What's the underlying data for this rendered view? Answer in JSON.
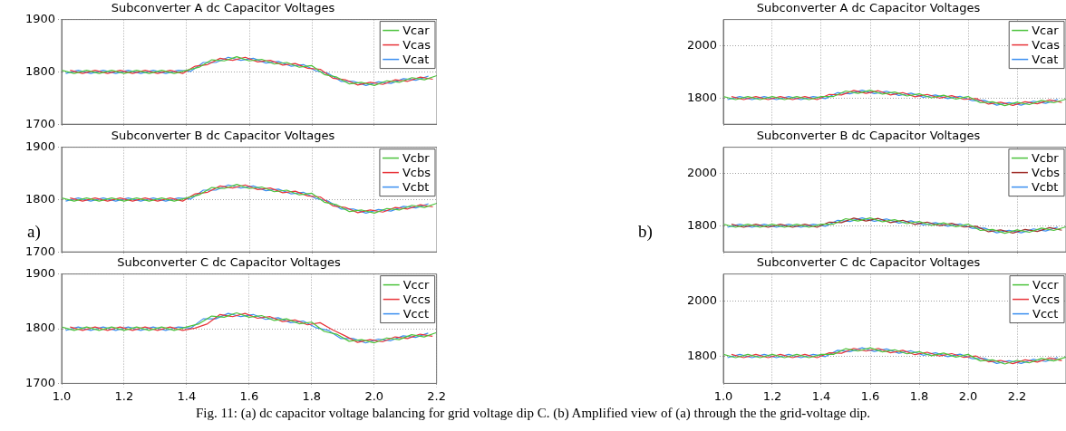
{
  "chart_data": [
    {
      "type": "line",
      "title": "Subconverter A dc Capacitor Voltages",
      "xlim": [
        1.0,
        2.2
      ],
      "xticks": [
        {
          "value": 1.0,
          "label": null
        },
        {
          "value": 1.2,
          "label": null
        },
        {
          "value": 1.4,
          "label": null
        },
        {
          "value": 1.6,
          "label": null
        },
        {
          "value": 1.8,
          "label": null
        },
        {
          "value": 2.0,
          "label": null
        },
        {
          "value": 2.2,
          "label": null
        }
      ],
      "ylim": [
        1700,
        1900
      ],
      "yticks": [
        1700,
        1800,
        1900
      ],
      "grid": true,
      "legend": "top right",
      "tick_labels": "y",
      "line_style": "solid",
      "marker": "none",
      "series": [
        {
          "name": "Vcar",
          "color": "#4cc33c",
          "x": [
            1.0,
            1.04,
            1.08,
            1.12,
            1.16,
            1.2,
            1.24,
            1.28,
            1.32,
            1.36,
            1.4,
            1.44,
            1.48,
            1.52,
            1.56,
            1.6,
            1.64,
            1.68,
            1.72,
            1.76,
            1.8,
            1.84,
            1.88,
            1.92,
            1.96,
            2.0,
            2.04,
            2.08,
            2.12,
            2.16,
            2.2
          ],
          "values": [
            1803,
            1797,
            1803,
            1797,
            1803,
            1797,
            1803,
            1797,
            1803,
            1797,
            1803,
            1809,
            1823,
            1821,
            1829,
            1821,
            1824,
            1815,
            1818,
            1809,
            1812,
            1795,
            1790,
            1777,
            1780,
            1774,
            1783,
            1780,
            1789,
            1785,
            1793
          ]
        },
        {
          "name": "Vcas",
          "color": "#e8353b",
          "x": [
            1.027,
            1.067,
            1.107,
            1.147,
            1.187,
            1.227,
            1.267,
            1.307,
            1.347,
            1.387,
            1.427,
            1.467,
            1.507,
            1.547,
            1.587,
            1.627,
            1.667,
            1.707,
            1.747,
            1.787,
            1.827,
            1.867,
            1.907,
            1.947,
            1.987,
            2.027,
            2.067,
            2.107,
            2.147,
            2.187
          ],
          "values": [
            1803,
            1797,
            1803,
            1797,
            1803,
            1797,
            1803,
            1797,
            1803,
            1797,
            1811,
            1814,
            1826,
            1822,
            1828,
            1819,
            1822,
            1813,
            1816,
            1807,
            1805,
            1788,
            1785,
            1775,
            1780,
            1776,
            1785,
            1782,
            1790,
            1786
          ]
        },
        {
          "name": "Vcat",
          "color": "#3b8ff0",
          "x": [
            1.013,
            1.053,
            1.093,
            1.133,
            1.173,
            1.213,
            1.253,
            1.293,
            1.333,
            1.373,
            1.413,
            1.453,
            1.493,
            1.533,
            1.573,
            1.613,
            1.653,
            1.693,
            1.733,
            1.773,
            1.813,
            1.853,
            1.893,
            1.933,
            1.973,
            2.013,
            2.053,
            2.093,
            2.133,
            2.173
          ],
          "values": [
            1797,
            1803,
            1797,
            1803,
            1797,
            1803,
            1797,
            1803,
            1797,
            1803,
            1801,
            1818,
            1818,
            1828,
            1822,
            1826,
            1817,
            1820,
            1811,
            1814,
            1802,
            1797,
            1782,
            1782,
            1774,
            1781,
            1778,
            1787,
            1784,
            1792
          ]
        }
      ]
    },
    {
      "type": "line",
      "title": "Subconverter B dc Capacitor Voltages",
      "annotations": [
        "a)"
      ],
      "xlim": [
        1.0,
        2.2
      ],
      "xticks": [
        {
          "value": 1.0,
          "label": null
        },
        {
          "value": 1.2,
          "label": null
        },
        {
          "value": 1.4,
          "label": null
        },
        {
          "value": 1.6,
          "label": null
        },
        {
          "value": 1.8,
          "label": null
        },
        {
          "value": 2.0,
          "label": null
        },
        {
          "value": 2.2,
          "label": null
        }
      ],
      "ylim": [
        1700,
        1900
      ],
      "yticks": [
        1700,
        1800,
        1900
      ],
      "grid": true,
      "legend": "top right",
      "tick_labels": "y",
      "line_style": "solid",
      "marker": "none",
      "series": [
        {
          "name": "Vcbr",
          "color": "#4cc33c",
          "x": [
            1.0,
            1.04,
            1.08,
            1.12,
            1.16,
            1.2,
            1.24,
            1.28,
            1.32,
            1.36,
            1.4,
            1.44,
            1.48,
            1.52,
            1.56,
            1.6,
            1.64,
            1.68,
            1.72,
            1.76,
            1.8,
            1.84,
            1.88,
            1.92,
            1.96,
            2.0,
            2.04,
            2.08,
            2.12,
            2.16,
            2.2
          ],
          "values": [
            1803,
            1797,
            1803,
            1797,
            1803,
            1797,
            1803,
            1797,
            1803,
            1797,
            1803,
            1809,
            1823,
            1821,
            1829,
            1821,
            1824,
            1815,
            1818,
            1809,
            1812,
            1795,
            1790,
            1777,
            1780,
            1774,
            1783,
            1780,
            1789,
            1785,
            1793
          ]
        },
        {
          "name": "Vcbs",
          "color": "#e8353b",
          "x": [
            1.027,
            1.067,
            1.107,
            1.147,
            1.187,
            1.227,
            1.267,
            1.307,
            1.347,
            1.387,
            1.427,
            1.467,
            1.507,
            1.547,
            1.587,
            1.627,
            1.667,
            1.707,
            1.747,
            1.787,
            1.827,
            1.867,
            1.907,
            1.947,
            1.987,
            2.027,
            2.067,
            2.107,
            2.147,
            2.187
          ],
          "values": [
            1803,
            1797,
            1803,
            1797,
            1803,
            1797,
            1803,
            1797,
            1803,
            1797,
            1811,
            1814,
            1826,
            1822,
            1828,
            1819,
            1822,
            1813,
            1816,
            1807,
            1805,
            1788,
            1785,
            1775,
            1780,
            1776,
            1785,
            1782,
            1790,
            1786
          ]
        },
        {
          "name": "Vcbt",
          "color": "#3b8ff0",
          "x": [
            1.013,
            1.053,
            1.093,
            1.133,
            1.173,
            1.213,
            1.253,
            1.293,
            1.333,
            1.373,
            1.413,
            1.453,
            1.493,
            1.533,
            1.573,
            1.613,
            1.653,
            1.693,
            1.733,
            1.773,
            1.813,
            1.853,
            1.893,
            1.933,
            1.973,
            2.013,
            2.053,
            2.093,
            2.133,
            2.173
          ],
          "values": [
            1797,
            1803,
            1797,
            1803,
            1797,
            1803,
            1797,
            1803,
            1797,
            1803,
            1801,
            1818,
            1818,
            1828,
            1822,
            1826,
            1817,
            1820,
            1811,
            1814,
            1802,
            1797,
            1782,
            1782,
            1774,
            1781,
            1778,
            1787,
            1784,
            1792
          ]
        }
      ]
    },
    {
      "type": "line",
      "title": "Subconverter C dc Capacitor Voltages",
      "annotations": [
        "Fig. 11: (a) dc capacitor voltage balancing for grid voltage dip C. (b) Amplified view of (a) through the the grid-voltage dip."
      ],
      "xlim": [
        1.0,
        2.2
      ],
      "xticks": [
        {
          "value": 1.0,
          "label": "1.0"
        },
        {
          "value": 1.2,
          "label": "1.2"
        },
        {
          "value": 1.4,
          "label": "1.4"
        },
        {
          "value": 1.6,
          "label": "1.6"
        },
        {
          "value": 1.8,
          "label": "1.8"
        },
        {
          "value": 2.0,
          "label": "2.0"
        },
        {
          "value": 2.2,
          "label": "2.2"
        }
      ],
      "ylim": [
        1700,
        1900
      ],
      "yticks": [
        1700,
        1800,
        1900
      ],
      "grid": true,
      "legend": "top right",
      "line_style": "solid",
      "marker": "none",
      "series": [
        {
          "name": "Vccr",
          "color": "#4cc33c",
          "x": [
            1.0,
            1.04,
            1.08,
            1.12,
            1.16,
            1.2,
            1.24,
            1.28,
            1.32,
            1.36,
            1.4,
            1.44,
            1.48,
            1.52,
            1.56,
            1.6,
            1.64,
            1.68,
            1.72,
            1.76,
            1.8,
            1.84,
            1.88,
            1.92,
            1.96,
            2.0,
            2.04,
            2.08,
            2.12,
            2.16,
            2.2
          ],
          "values": [
            1803,
            1797,
            1803,
            1797,
            1803,
            1797,
            1803,
            1797,
            1803,
            1797,
            1803,
            1809,
            1823,
            1821,
            1829,
            1821,
            1824,
            1815,
            1818,
            1809,
            1812,
            1795,
            1790,
            1777,
            1780,
            1774,
            1783,
            1780,
            1789,
            1785,
            1793
          ]
        },
        {
          "name": "Vccs",
          "color": "#e8353b",
          "x": [
            1.027,
            1.067,
            1.107,
            1.147,
            1.187,
            1.227,
            1.267,
            1.307,
            1.347,
            1.387,
            1.427,
            1.467,
            1.507,
            1.547,
            1.587,
            1.627,
            1.667,
            1.707,
            1.747,
            1.787,
            1.827,
            1.867,
            1.907,
            1.947,
            1.987,
            2.027,
            2.067,
            2.107,
            2.147,
            2.187
          ],
          "values": [
            1803,
            1797,
            1803,
            1797,
            1803,
            1797,
            1803,
            1797,
            1803,
            1797,
            1801,
            1809,
            1826,
            1822,
            1828,
            1819,
            1822,
            1813,
            1816,
            1807,
            1811,
            1798,
            1787,
            1775,
            1780,
            1776,
            1785,
            1782,
            1790,
            1786
          ]
        },
        {
          "name": "Vcct",
          "color": "#3b8ff0",
          "x": [
            1.013,
            1.053,
            1.093,
            1.133,
            1.173,
            1.213,
            1.253,
            1.293,
            1.333,
            1.373,
            1.413,
            1.453,
            1.493,
            1.533,
            1.573,
            1.613,
            1.653,
            1.693,
            1.733,
            1.773,
            1.813,
            1.853,
            1.893,
            1.933,
            1.973,
            2.013,
            2.053,
            2.093,
            2.133,
            2.173
          ],
          "values": [
            1797,
            1803,
            1797,
            1803,
            1797,
            1803,
            1797,
            1803,
            1797,
            1803,
            1801,
            1818,
            1818,
            1828,
            1822,
            1826,
            1817,
            1820,
            1811,
            1814,
            1802,
            1797,
            1782,
            1782,
            1774,
            1781,
            1778,
            1787,
            1784,
            1792
          ]
        }
      ]
    },
    {
      "type": "line",
      "title": "Subconverter A dc Capacitor Voltages",
      "xlim": [
        1.0,
        2.4
      ],
      "xticks": [
        {
          "value": 1.0,
          "label": null
        },
        {
          "value": 1.2,
          "label": null
        },
        {
          "value": 1.4,
          "label": null
        },
        {
          "value": 1.6,
          "label": null
        },
        {
          "value": 1.8,
          "label": null
        },
        {
          "value": 2.0,
          "label": null
        },
        {
          "value": 2.2,
          "label": null
        }
      ],
      "ylim": [
        1700,
        2100
      ],
      "yticks": [
        1800,
        2000
      ],
      "grid": true,
      "legend": "top right",
      "tick_labels": "y",
      "line_style": "solid",
      "marker": "none",
      "series": [
        {
          "name": "Vcar",
          "color": "#4cc33c",
          "x": [
            1.0,
            1.05,
            1.1,
            1.15,
            1.2,
            1.25,
            1.3,
            1.35,
            1.4,
            1.45,
            1.5,
            1.55,
            1.6,
            1.65,
            1.7,
            1.75,
            1.8,
            1.85,
            1.9,
            1.95,
            2.0,
            2.05,
            2.1,
            2.15,
            2.2,
            2.25,
            2.3,
            2.35,
            2.4
          ],
          "values": [
            1806,
            1794,
            1806,
            1794,
            1806,
            1794,
            1806,
            1794,
            1806,
            1806,
            1827,
            1818,
            1830,
            1815,
            1823,
            1808,
            1816,
            1801,
            1811,
            1796,
            1806,
            1782,
            1786,
            1771,
            1784,
            1775,
            1791,
            1782,
            1796
          ]
        },
        {
          "name": "Vcas",
          "color": "#e8353b",
          "x": [
            1.033,
            1.083,
            1.133,
            1.183,
            1.233,
            1.283,
            1.333,
            1.383,
            1.433,
            1.483,
            1.533,
            1.583,
            1.633,
            1.683,
            1.733,
            1.783,
            1.833,
            1.883,
            1.933,
            1.983,
            2.033,
            2.083,
            2.133,
            2.183,
            2.233,
            2.283,
            2.333,
            2.383
          ],
          "values": [
            1806,
            1794,
            1806,
            1794,
            1806,
            1794,
            1806,
            1794,
            1814,
            1812,
            1829,
            1818,
            1828,
            1812,
            1821,
            1805,
            1814,
            1800,
            1809,
            1795,
            1798,
            1777,
            1784,
            1772,
            1786,
            1778,
            1793,
            1783
          ]
        },
        {
          "name": "Vcat",
          "color": "#3b8ff0",
          "x": [
            1.017,
            1.067,
            1.117,
            1.167,
            1.217,
            1.267,
            1.317,
            1.367,
            1.417,
            1.467,
            1.517,
            1.567,
            1.617,
            1.667,
            1.717,
            1.767,
            1.817,
            1.867,
            1.917,
            1.967,
            2.017,
            2.067,
            2.117,
            2.167,
            2.217,
            2.267,
            2.317,
            2.367
          ],
          "values": [
            1794,
            1806,
            1794,
            1806,
            1794,
            1806,
            1794,
            1806,
            1798,
            1821,
            1816,
            1830,
            1817,
            1826,
            1810,
            1819,
            1803,
            1812,
            1798,
            1807,
            1790,
            1791,
            1773,
            1783,
            1773,
            1788,
            1780,
            1795
          ]
        }
      ]
    },
    {
      "type": "line",
      "title": "Subconverter B dc Capacitor Voltages",
      "annotations": [
        "b)"
      ],
      "xlim": [
        1.0,
        2.4
      ],
      "xticks": [
        {
          "value": 1.0,
          "label": null
        },
        {
          "value": 1.2,
          "label": null
        },
        {
          "value": 1.4,
          "label": null
        },
        {
          "value": 1.6,
          "label": null
        },
        {
          "value": 1.8,
          "label": null
        },
        {
          "value": 2.0,
          "label": null
        },
        {
          "value": 2.2,
          "label": null
        }
      ],
      "ylim": [
        1700,
        2100
      ],
      "yticks": [
        1800,
        2000
      ],
      "grid": true,
      "legend": "top right",
      "tick_labels": "y",
      "line_style": "solid",
      "marker": "none",
      "series": [
        {
          "name": "Vcbr",
          "color": "#4cc33c",
          "x": [
            1.0,
            1.05,
            1.1,
            1.15,
            1.2,
            1.25,
            1.3,
            1.35,
            1.4,
            1.45,
            1.5,
            1.55,
            1.6,
            1.65,
            1.7,
            1.75,
            1.8,
            1.85,
            1.9,
            1.95,
            2.0,
            2.05,
            2.1,
            2.15,
            2.2,
            2.25,
            2.3,
            2.35,
            2.4
          ],
          "values": [
            1806,
            1794,
            1806,
            1794,
            1806,
            1794,
            1806,
            1794,
            1806,
            1806,
            1827,
            1818,
            1830,
            1815,
            1823,
            1808,
            1816,
            1801,
            1811,
            1796,
            1806,
            1782,
            1786,
            1771,
            1784,
            1775,
            1791,
            1782,
            1796
          ]
        },
        {
          "name": "Vcbs",
          "color": "#a0302c",
          "x": [
            1.033,
            1.083,
            1.133,
            1.183,
            1.233,
            1.283,
            1.333,
            1.383,
            1.433,
            1.483,
            1.533,
            1.583,
            1.633,
            1.683,
            1.733,
            1.783,
            1.833,
            1.883,
            1.933,
            1.983,
            2.033,
            2.083,
            2.133,
            2.183,
            2.233,
            2.283,
            2.333,
            2.383
          ],
          "values": [
            1806,
            1794,
            1806,
            1794,
            1806,
            1794,
            1806,
            1794,
            1814,
            1812,
            1829,
            1818,
            1828,
            1812,
            1821,
            1805,
            1814,
            1800,
            1809,
            1795,
            1798,
            1777,
            1784,
            1772,
            1786,
            1778,
            1793,
            1783
          ]
        },
        {
          "name": "Vcbt",
          "color": "#3b8ff0",
          "x": [
            1.017,
            1.067,
            1.117,
            1.167,
            1.217,
            1.267,
            1.317,
            1.367,
            1.417,
            1.467,
            1.517,
            1.567,
            1.617,
            1.667,
            1.717,
            1.767,
            1.817,
            1.867,
            1.917,
            1.967,
            2.017,
            2.067,
            2.117,
            2.167,
            2.217,
            2.267,
            2.317,
            2.367
          ],
          "values": [
            1794,
            1806,
            1794,
            1806,
            1794,
            1806,
            1794,
            1806,
            1798,
            1821,
            1816,
            1830,
            1817,
            1826,
            1810,
            1819,
            1803,
            1812,
            1798,
            1807,
            1790,
            1791,
            1773,
            1783,
            1773,
            1788,
            1780,
            1795
          ]
        }
      ]
    },
    {
      "type": "line",
      "title": "Subconverter C dc Capacitor Voltages",
      "xlim": [
        1.0,
        2.4
      ],
      "xticks": [
        {
          "value": 1.0,
          "label": "1.0"
        },
        {
          "value": 1.2,
          "label": "1.2"
        },
        {
          "value": 1.4,
          "label": "1.4"
        },
        {
          "value": 1.6,
          "label": "1.6"
        },
        {
          "value": 1.8,
          "label": "1.8"
        },
        {
          "value": 2.0,
          "label": "2.0"
        },
        {
          "value": 2.2,
          "label": "2.2"
        }
      ],
      "ylim": [
        1700,
        2100
      ],
      "yticks": [
        1800,
        2000
      ],
      "grid": true,
      "legend": "top right",
      "line_style": "solid",
      "marker": "none",
      "series": [
        {
          "name": "Vccr",
          "color": "#4cc33c",
          "x": [
            1.0,
            1.05,
            1.1,
            1.15,
            1.2,
            1.25,
            1.3,
            1.35,
            1.4,
            1.45,
            1.5,
            1.55,
            1.6,
            1.65,
            1.7,
            1.75,
            1.8,
            1.85,
            1.9,
            1.95,
            2.0,
            2.05,
            2.1,
            2.15,
            2.2,
            2.25,
            2.3,
            2.35,
            2.4
          ],
          "values": [
            1806,
            1794,
            1806,
            1794,
            1806,
            1794,
            1806,
            1794,
            1806,
            1806,
            1827,
            1818,
            1830,
            1815,
            1823,
            1808,
            1816,
            1801,
            1811,
            1796,
            1806,
            1782,
            1786,
            1771,
            1784,
            1775,
            1791,
            1782,
            1796
          ]
        },
        {
          "name": "Vccs",
          "color": "#e8353b",
          "x": [
            1.033,
            1.083,
            1.133,
            1.183,
            1.233,
            1.283,
            1.333,
            1.383,
            1.433,
            1.483,
            1.533,
            1.583,
            1.633,
            1.683,
            1.733,
            1.783,
            1.833,
            1.883,
            1.933,
            1.983,
            2.033,
            2.083,
            2.133,
            2.183,
            2.233,
            2.283,
            2.333,
            2.383
          ],
          "values": [
            1806,
            1794,
            1806,
            1794,
            1806,
            1794,
            1806,
            1794,
            1812,
            1810,
            1828,
            1818,
            1828,
            1812,
            1821,
            1805,
            1814,
            1800,
            1809,
            1795,
            1800,
            1779,
            1784,
            1772,
            1786,
            1778,
            1793,
            1783
          ]
        },
        {
          "name": "Vcct",
          "color": "#3b8ff0",
          "x": [
            1.017,
            1.067,
            1.117,
            1.167,
            1.217,
            1.267,
            1.317,
            1.367,
            1.417,
            1.467,
            1.517,
            1.567,
            1.617,
            1.667,
            1.717,
            1.767,
            1.817,
            1.867,
            1.917,
            1.967,
            2.017,
            2.067,
            2.117,
            2.167,
            2.217,
            2.267,
            2.317,
            2.367
          ],
          "values": [
            1794,
            1806,
            1794,
            1806,
            1794,
            1806,
            1794,
            1806,
            1798,
            1821,
            1816,
            1830,
            1817,
            1826,
            1810,
            1819,
            1803,
            1812,
            1798,
            1807,
            1790,
            1791,
            1773,
            1783,
            1773,
            1788,
            1780,
            1795
          ]
        }
      ]
    }
  ]
}
